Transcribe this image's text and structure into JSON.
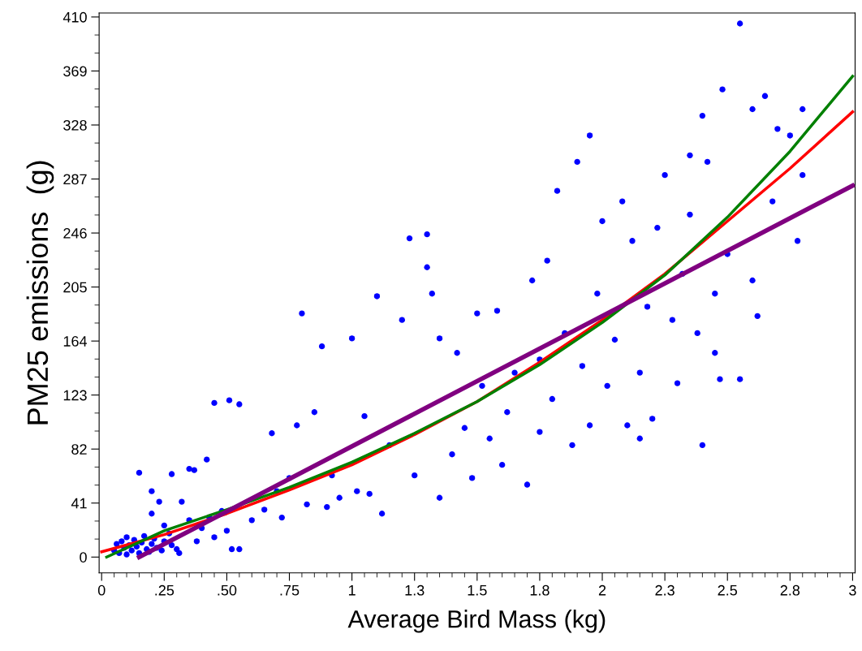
{
  "chart_data": {
    "type": "scatter",
    "xlabel": "Average Bird Mass (kg)",
    "ylabel": "PM25 emissions  (g)",
    "xlim": [
      -0.01,
      3.01
    ],
    "ylim": [
      -12,
      413
    ],
    "xticks": [
      0,
      {
        "value": 0.25,
        "label": ".25"
      },
      {
        "value": 0.5,
        "label": ".50"
      },
      {
        "value": 0.75,
        "label": ".75"
      },
      1,
      {
        "value": 1.25,
        "label": "1.3"
      },
      1.5,
      {
        "value": 1.75,
        "label": "1.8"
      },
      2,
      {
        "value": 2.25,
        "label": "2.3"
      },
      2.5,
      {
        "value": 2.75,
        "label": "2.8"
      },
      3
    ],
    "yticks": [
      0,
      41,
      82,
      123,
      164,
      205,
      246,
      287,
      328,
      369,
      410
    ],
    "grid": false,
    "series": [
      {
        "marker": "circle",
        "color": "#0000ff",
        "x": [
          0.05,
          0.06,
          0.07,
          0.08,
          0.09,
          0.1,
          0.1,
          0.11,
          0.12,
          0.13,
          0.14,
          0.15,
          0.16,
          0.17,
          0.18,
          0.19,
          0.2,
          0.21,
          0.22,
          0.24,
          0.25,
          0.27,
          0.28,
          0.3,
          0.31,
          0.15,
          0.2,
          0.23,
          0.28,
          0.32,
          0.35,
          0.37,
          0.42,
          0.45,
          0.51,
          0.55,
          0.2,
          0.25,
          0.35,
          0.4,
          0.43,
          0.48,
          0.5,
          0.52,
          0.55,
          0.45,
          0.38,
          0.6,
          0.65,
          0.68,
          0.7,
          0.72,
          0.75,
          0.78,
          0.8,
          0.82,
          0.85,
          0.88,
          0.9,
          0.92,
          0.95,
          1.0,
          1.02,
          1.05,
          1.07,
          1.1,
          1.12,
          1.15,
          1.2,
          1.23,
          1.25,
          1.3,
          1.3,
          1.32,
          1.35,
          1.35,
          1.4,
          1.42,
          1.45,
          1.48,
          1.5,
          1.52,
          1.55,
          1.58,
          1.6,
          1.62,
          1.65,
          1.7,
          1.72,
          1.75,
          1.75,
          1.78,
          1.8,
          1.82,
          1.85,
          1.88,
          1.9,
          1.92,
          1.95,
          1.95,
          1.98,
          2.0,
          2.02,
          2.05,
          2.08,
          2.1,
          2.12,
          2.15,
          2.18,
          2.2,
          2.22,
          2.25,
          2.28,
          2.3,
          2.32,
          2.35,
          2.38,
          2.4,
          2.4,
          2.42,
          2.45,
          2.47,
          2.48,
          2.5,
          2.55,
          2.55,
          2.6,
          2.62,
          2.65,
          2.68,
          2.7,
          2.75,
          2.78,
          2.8,
          2.8,
          2.6,
          2.45,
          2.35,
          2.15
        ],
        "values": [
          5,
          10,
          3,
          12,
          7,
          15,
          2,
          9,
          5,
          13,
          8,
          3,
          11,
          16,
          6,
          4,
          10,
          14,
          7,
          5,
          12,
          18,
          9,
          6,
          3,
          64,
          50,
          42,
          63,
          42,
          67,
          66,
          74,
          117,
          119,
          116,
          33,
          24,
          28,
          22,
          30,
          35,
          20,
          6,
          6,
          15,
          12,
          28,
          36,
          94,
          50,
          30,
          60,
          100,
          185,
          40,
          110,
          160,
          38,
          62,
          45,
          166,
          50,
          107,
          48,
          198,
          33,
          85,
          180,
          242,
          62,
          245,
          220,
          200,
          45,
          166,
          78,
          155,
          98,
          60,
          185,
          130,
          90,
          187,
          70,
          110,
          140,
          55,
          210,
          150,
          95,
          225,
          120,
          278,
          170,
          85,
          300,
          145,
          320,
          100,
          200,
          255,
          130,
          165,
          270,
          100,
          240,
          140,
          190,
          105,
          250,
          290,
          180,
          132,
          215,
          305,
          170,
          85,
          335,
          300,
          200,
          135,
          355,
          230,
          135,
          405,
          340,
          183,
          350,
          270,
          325,
          320,
          240,
          340,
          290,
          210,
          155,
          260,
          90
        ]
      },
      {
        "type": "line",
        "marker": "none",
        "color": "#ff0000",
        "x": [
          0,
          0.25,
          0.5,
          0.75,
          1,
          1.25,
          1.5,
          1.75,
          2,
          2.25,
          2.5,
          2.75,
          3
        ],
        "values": [
          4,
          17,
          33,
          51,
          70,
          93,
          118,
          148,
          180,
          215,
          255,
          295,
          338
        ]
      },
      {
        "type": "line",
        "marker": "none",
        "color": "#008000",
        "x": [
          0.02,
          0.25,
          0.5,
          0.75,
          1,
          1.25,
          1.5,
          1.75,
          2,
          2.25,
          2.5,
          2.75,
          3
        ],
        "values": [
          0,
          20,
          36,
          53,
          72,
          94,
          118,
          146,
          178,
          214,
          258,
          308,
          365
        ]
      },
      {
        "type": "line",
        "marker": "none",
        "color": "#800080",
        "x": [
          0.15,
          3
        ],
        "values": [
          0,
          282
        ]
      }
    ]
  }
}
